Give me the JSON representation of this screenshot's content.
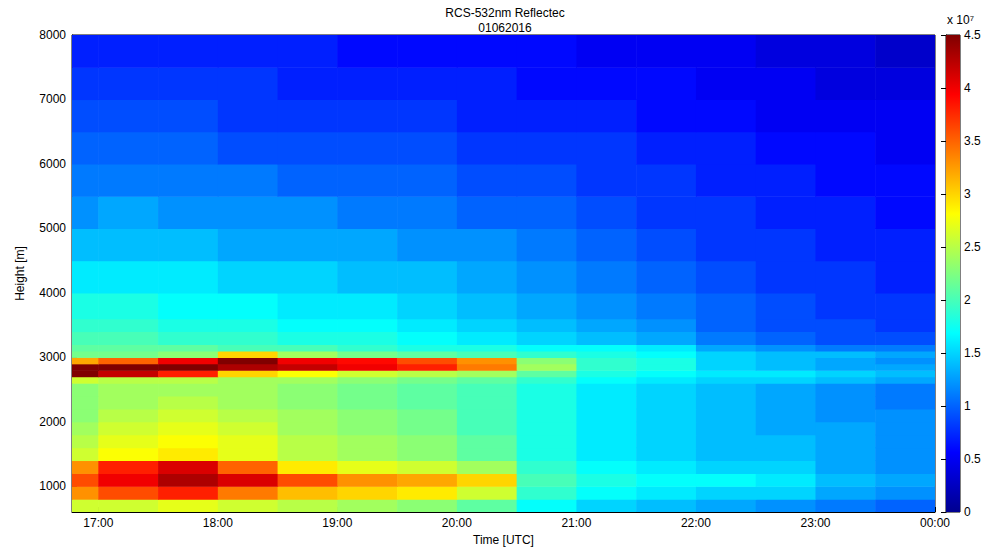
{
  "chart_data": {
    "type": "heatmap",
    "title": "RCS-532nm Reflectec",
    "subtitle": "01062016",
    "x_label": "Time [UTC]",
    "y_label": "Height [m]",
    "xlim": [
      16.78,
      24
    ],
    "xticks": [
      {
        "value": 17,
        "label": "17:00"
      },
      {
        "value": 18,
        "label": "18:00"
      },
      {
        "value": 19,
        "label": "19:00"
      },
      {
        "value": 20,
        "label": "20:00"
      },
      {
        "value": 21,
        "label": "21:00"
      },
      {
        "value": 22,
        "label": "22:00"
      },
      {
        "value": 23,
        "label": "23:00"
      },
      {
        "value": 24,
        "label": "00:00"
      }
    ],
    "ylim": [
      600,
      8000
    ],
    "yticks": [
      1000,
      2000,
      3000,
      4000,
      5000,
      6000,
      7000,
      8000
    ],
    "grid": false,
    "color": "jet",
    "x_bins": [
      16.78,
      17,
      17.5,
      18,
      18.5,
      19,
      19.5,
      20,
      20.5,
      21,
      21.5,
      22,
      22.5,
      23,
      23.5,
      24
    ],
    "y_bins": [
      600,
      800,
      1000,
      1200,
      1400,
      1600,
      1800,
      2000,
      2200,
      2400,
      2600,
      2700,
      2800,
      2900,
      3000,
      3100,
      3200,
      3400,
      3600,
      4000,
      4500,
      5000,
      5500,
      6000,
      6500,
      7000,
      7500,
      8000
    ],
    "values": [
      [
        2.6,
        2.6,
        2.7,
        2.6,
        2.5,
        2.4,
        2.3,
        2.1,
        1.7,
        1.5,
        1.4,
        1.3,
        1.2,
        1.1,
        1.0
      ],
      [
        3.3,
        3.6,
        3.8,
        3.4,
        3.1,
        3.0,
        2.9,
        2.6,
        1.9,
        1.7,
        1.6,
        1.5,
        1.5,
        1.3,
        1.2
      ],
      [
        3.6,
        4.0,
        4.3,
        4.1,
        3.6,
        3.3,
        3.2,
        3.0,
        2.0,
        1.8,
        1.7,
        1.7,
        1.6,
        1.4,
        1.3
      ],
      [
        3.3,
        3.8,
        4.1,
        3.5,
        2.9,
        2.7,
        2.6,
        2.4,
        1.9,
        1.7,
        1.6,
        1.5,
        1.5,
        1.3,
        1.2
      ],
      [
        2.6,
        2.8,
        2.9,
        2.7,
        2.5,
        2.4,
        2.3,
        2.1,
        1.8,
        1.6,
        1.5,
        1.4,
        1.4,
        1.3,
        1.2
      ],
      [
        2.5,
        2.7,
        2.8,
        2.7,
        2.5,
        2.4,
        2.3,
        2.1,
        1.8,
        1.6,
        1.5,
        1.4,
        1.4,
        1.3,
        1.2
      ],
      [
        2.4,
        2.6,
        2.7,
        2.6,
        2.4,
        2.3,
        2.2,
        2.0,
        1.8,
        1.6,
        1.5,
        1.4,
        1.3,
        1.3,
        1.2
      ],
      [
        2.3,
        2.5,
        2.6,
        2.5,
        2.4,
        2.3,
        2.2,
        2.0,
        1.8,
        1.6,
        1.5,
        1.4,
        1.3,
        1.2,
        1.2
      ],
      [
        2.3,
        2.4,
        2.5,
        2.4,
        2.3,
        2.2,
        2.1,
        2.0,
        1.8,
        1.6,
        1.5,
        1.4,
        1.3,
        1.2,
        1.1
      ],
      [
        2.3,
        2.4,
        2.4,
        2.4,
        2.3,
        2.2,
        2.1,
        2.0,
        1.8,
        1.6,
        1.5,
        1.4,
        1.3,
        1.2,
        1.1
      ],
      [
        2.6,
        2.5,
        2.5,
        2.4,
        2.4,
        2.3,
        2.2,
        2.1,
        1.9,
        1.7,
        1.6,
        1.5,
        1.5,
        1.4,
        1.3
      ],
      [
        4.5,
        4.2,
        3.8,
        3.0,
        2.8,
        2.6,
        2.5,
        2.4,
        2.1,
        1.8,
        1.7,
        1.6,
        1.6,
        1.5,
        1.4
      ],
      [
        4.5,
        4.5,
        4.5,
        4.3,
        4.2,
        4.0,
        3.8,
        3.4,
        2.4,
        1.9,
        1.8,
        1.5,
        1.4,
        1.3,
        1.3
      ],
      [
        3.2,
        3.5,
        4.0,
        4.5,
        4.0,
        3.9,
        3.6,
        3.3,
        2.3,
        1.9,
        1.8,
        1.5,
        1.4,
        1.3,
        1.2
      ],
      [
        2.2,
        2.2,
        2.3,
        3.0,
        2.4,
        2.2,
        2.1,
        2.0,
        1.9,
        1.8,
        1.7,
        1.5,
        1.4,
        1.4,
        1.3
      ],
      [
        2.1,
        2.1,
        2.1,
        2.0,
        2.0,
        1.9,
        1.8,
        1.8,
        1.7,
        1.7,
        1.6,
        1.3,
        1.2,
        1.1,
        1.1
      ],
      [
        2.0,
        2.0,
        1.9,
        1.9,
        1.8,
        1.8,
        1.7,
        1.6,
        1.5,
        1.4,
        1.3,
        1.1,
        1.0,
        0.9,
        0.9
      ],
      [
        1.9,
        1.9,
        1.8,
        1.8,
        1.7,
        1.7,
        1.6,
        1.5,
        1.4,
        1.3,
        1.2,
        1.0,
        0.9,
        0.9,
        0.8
      ],
      [
        1.8,
        1.8,
        1.7,
        1.7,
        1.6,
        1.6,
        1.5,
        1.4,
        1.3,
        1.2,
        1.1,
        1.0,
        0.9,
        0.8,
        0.8
      ],
      [
        1.6,
        1.6,
        1.6,
        1.5,
        1.5,
        1.4,
        1.4,
        1.3,
        1.2,
        1.1,
        1.0,
        0.9,
        0.8,
        0.8,
        0.7
      ],
      [
        1.4,
        1.4,
        1.4,
        1.3,
        1.3,
        1.3,
        1.2,
        1.2,
        1.1,
        1.0,
        0.9,
        0.8,
        0.8,
        0.7,
        0.7
      ],
      [
        1.2,
        1.3,
        1.2,
        1.2,
        1.2,
        1.1,
        1.1,
        1.0,
        1.0,
        0.9,
        0.8,
        0.8,
        0.7,
        0.7,
        0.6
      ],
      [
        1.1,
        1.1,
        1.1,
        1.1,
        1.0,
        1.0,
        1.0,
        0.9,
        0.9,
        0.8,
        0.8,
        0.7,
        0.7,
        0.6,
        0.6
      ],
      [
        1.0,
        1.0,
        1.0,
        0.9,
        0.9,
        0.9,
        0.9,
        0.8,
        0.8,
        0.8,
        0.7,
        0.7,
        0.6,
        0.6,
        0.5
      ],
      [
        0.9,
        0.9,
        0.9,
        0.8,
        0.8,
        0.8,
        0.8,
        0.7,
        0.7,
        0.7,
        0.6,
        0.6,
        0.5,
        0.5,
        0.5
      ],
      [
        0.8,
        0.8,
        0.8,
        0.8,
        0.7,
        0.7,
        0.7,
        0.7,
        0.6,
        0.6,
        0.6,
        0.5,
        0.5,
        0.4,
        0.4
      ],
      [
        0.7,
        0.7,
        0.7,
        0.7,
        0.7,
        0.6,
        0.6,
        0.6,
        0.6,
        0.5,
        0.5,
        0.5,
        0.4,
        0.4,
        0.3
      ]
    ],
    "colorbar": {
      "range": [
        0,
        4.5
      ],
      "ticks": [
        0,
        0.5,
        1,
        1.5,
        2,
        2.5,
        3,
        3.5,
        4,
        4.5
      ],
      "title": "x 10⁷"
    }
  }
}
